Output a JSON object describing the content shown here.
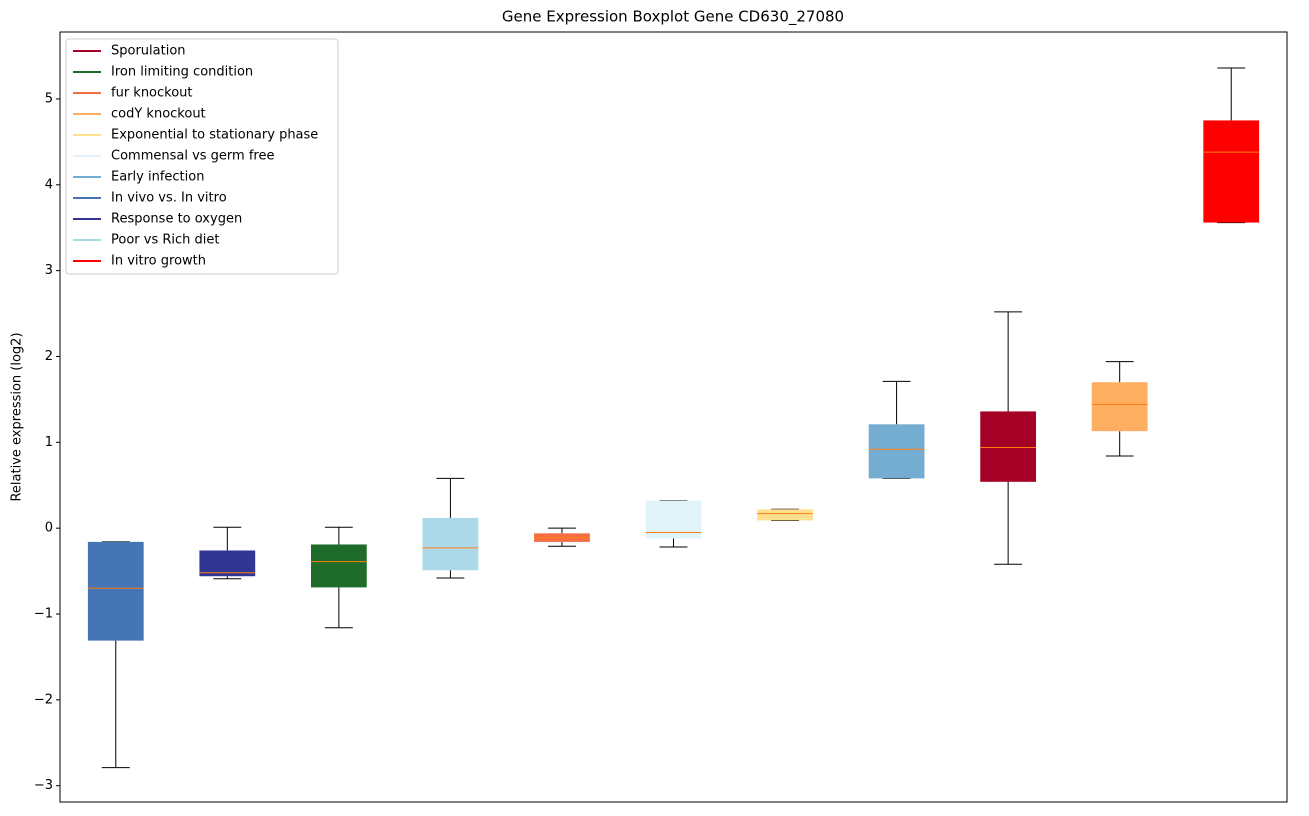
{
  "chart_data": {
    "type": "box",
    "title": "Gene Expression Boxplot Gene CD630_27080",
    "ylabel": "Relative expression (log2)",
    "ylim": [
      -3.19,
      5.78
    ],
    "yticks": [
      {
        "value": -3,
        "label": "−3"
      },
      {
        "value": -2,
        "label": "−2"
      },
      {
        "value": -1,
        "label": "−1"
      },
      0,
      1,
      2,
      3,
      4,
      5
    ],
    "median_color": "#ff7f0e",
    "legend_position": "upper left",
    "legend": [
      {
        "name": "Sporulation",
        "color": "#a50026"
      },
      {
        "name": "Iron limiting condition",
        "color": "#1f6b2a"
      },
      {
        "name": "fur knockout",
        "color": "#f46d43"
      },
      {
        "name": "codY knockout",
        "color": "#fdae61"
      },
      {
        "name": "Exponential to stationary phase",
        "color": "#fee090"
      },
      {
        "name": "Commensal vs germ free",
        "color": "#e0f3f8"
      },
      {
        "name": "Early infection",
        "color": "#74add1"
      },
      {
        "name": "In vivo vs. In vitro",
        "color": "#4575b4"
      },
      {
        "name": "Response to oxygen",
        "color": "#313695"
      },
      {
        "name": "Poor vs Rich diet",
        "color": "#abd9e9"
      },
      {
        "name": "In vitro growth",
        "color": "#ff0000"
      }
    ],
    "boxes": [
      {
        "color": "#4575b4",
        "whislo": -2.79,
        "q1": -1.31,
        "med": -0.7,
        "q3": -0.16,
        "whishi": -0.16
      },
      {
        "color": "#313695",
        "whislo": -0.59,
        "q1": -0.56,
        "med": -0.52,
        "q3": -0.26,
        "whishi": 0.01
      },
      {
        "color": "#1f6b2a",
        "whislo": -1.16,
        "q1": -0.69,
        "med": -0.39,
        "q3": -0.19,
        "whishi": 0.01
      },
      {
        "color": "#abd9e9",
        "whislo": -0.58,
        "q1": -0.49,
        "med": -0.23,
        "q3": 0.12,
        "whishi": 0.58
      },
      {
        "color": "#f46d43",
        "whislo": -0.21,
        "q1": -0.16,
        "med": -0.11,
        "q3": -0.06,
        "whishi": 0.0
      },
      {
        "color": "#e0f3f8",
        "whislo": -0.22,
        "q1": -0.12,
        "med": -0.05,
        "q3": 0.32,
        "whishi": 0.32
      },
      {
        "color": "#fee090",
        "whislo": 0.09,
        "q1": 0.09,
        "med": 0.17,
        "q3": 0.22,
        "whishi": 0.22
      },
      {
        "color": "#74add1",
        "whislo": 0.58,
        "q1": 0.58,
        "med": 0.92,
        "q3": 1.21,
        "whishi": 1.71
      },
      {
        "color": "#a50026",
        "whislo": -0.42,
        "q1": 0.54,
        "med": 0.94,
        "q3": 1.36,
        "whishi": 2.52
      },
      {
        "color": "#fdae61",
        "whislo": 0.84,
        "q1": 1.13,
        "med": 1.44,
        "q3": 1.7,
        "whishi": 1.94
      },
      {
        "color": "#ff0000",
        "whislo": 3.56,
        "q1": 3.56,
        "med": 4.38,
        "q3": 4.75,
        "whishi": 5.36
      }
    ]
  }
}
